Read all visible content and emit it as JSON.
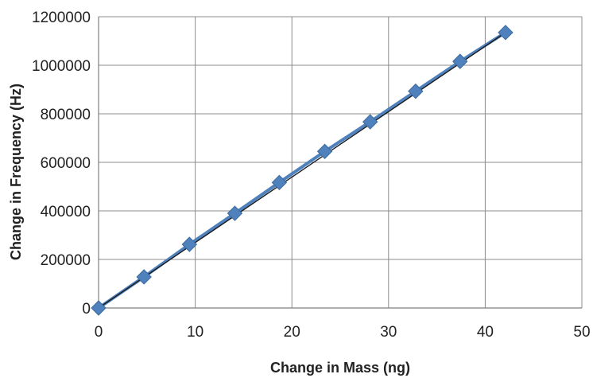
{
  "chart_data": {
    "type": "scatter",
    "xlabel": "Change in Mass (ng)",
    "ylabel": "Change in Frequency (Hz)",
    "xlim": [
      0,
      50
    ],
    "ylim": [
      0,
      1200000
    ],
    "x_ticks": [
      0,
      10,
      20,
      30,
      40,
      50
    ],
    "y_ticks": [
      0,
      200000,
      400000,
      600000,
      800000,
      1000000,
      1200000
    ],
    "grid": true,
    "legend": "none",
    "series": [
      {
        "marker_color": "#4f81bd",
        "line_color": "#4f81bd",
        "x": [
          0,
          4.7,
          9.4,
          14.1,
          18.7,
          23.4,
          28.1,
          32.8,
          37.4,
          42.1
        ],
        "y": [
          0,
          128000,
          262000,
          390000,
          517000,
          645000,
          767000,
          893000,
          1016000,
          1135000
        ]
      }
    ],
    "trendline": {
      "x": [
        0,
        42.1
      ],
      "y": [
        0,
        1135000
      ],
      "color": "#1a1a1a"
    }
  }
}
